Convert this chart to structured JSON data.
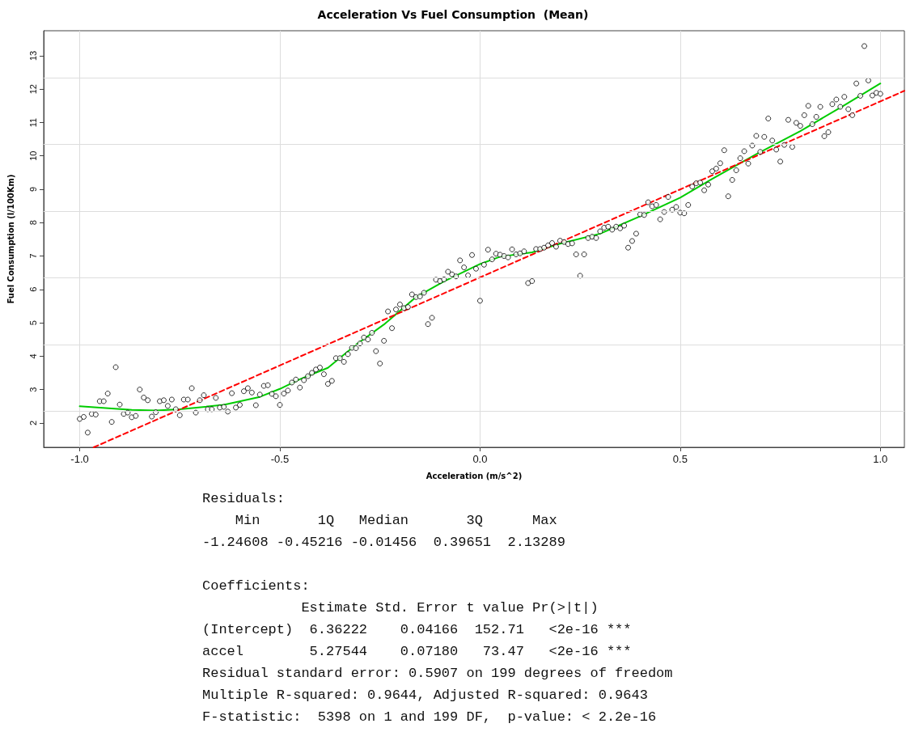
{
  "chart_data": {
    "type": "scatter",
    "title": "Acceleration Vs Fuel Consumption  (Mean)",
    "xlabel": "Acceleration (m/s^2)",
    "ylabel": "Fuel Consumption (l/100Km)",
    "xlim": [
      -1.09,
      1.06
    ],
    "ylim": [
      1.27,
      13.75
    ],
    "xticks": [
      {
        "value": -1,
        "label": "-1.0"
      },
      {
        "value": -0.5,
        "label": "-0.5"
      },
      {
        "value": 0,
        "label": "0.0"
      },
      {
        "value": 0.5,
        "label": "0.5"
      },
      {
        "value": 1,
        "label": "1.0"
      }
    ],
    "yticks": [
      2,
      3,
      4,
      5,
      6,
      7,
      8,
      9,
      10,
      11,
      12,
      13,
      {
        "value": 2.35,
        "label": null
      },
      {
        "value": 4.35,
        "label": null
      },
      {
        "value": 6.35,
        "label": null
      },
      {
        "value": 8.35,
        "label": null
      },
      {
        "value": 10.35,
        "label": null
      },
      {
        "value": 12.35,
        "label": null
      }
    ],
    "grid": true,
    "marker": "circle",
    "series": [
      {
        "type": "scatter",
        "color": "#000000",
        "x": [
          -1.0,
          -0.99,
          -0.98,
          -0.97,
          -0.96,
          -0.95,
          -0.94,
          -0.93,
          -0.92,
          -0.91,
          -0.9,
          -0.89,
          -0.88,
          -0.87,
          -0.86,
          -0.85,
          -0.84,
          -0.83,
          -0.82,
          -0.81,
          -0.8,
          -0.79,
          -0.78,
          -0.77,
          -0.76,
          -0.75,
          -0.74,
          -0.73,
          -0.72,
          -0.71,
          -0.7,
          -0.69,
          -0.68,
          -0.67,
          -0.66,
          -0.65,
          -0.64,
          -0.63,
          -0.62,
          -0.61,
          -0.6,
          -0.59,
          -0.58,
          -0.57,
          -0.56,
          -0.55,
          -0.54,
          -0.53,
          -0.52,
          -0.51,
          -0.5,
          -0.49,
          -0.48,
          -0.47,
          -0.46,
          -0.45,
          -0.44,
          -0.43,
          -0.42,
          -0.41,
          -0.4,
          -0.39,
          -0.38,
          -0.37,
          -0.36,
          -0.35,
          -0.34,
          -0.33,
          -0.32,
          -0.31,
          -0.3,
          -0.29,
          -0.28,
          -0.27,
          -0.26,
          -0.25,
          -0.24,
          -0.23,
          -0.22,
          -0.21,
          -0.2,
          -0.19,
          -0.18,
          -0.17,
          -0.16,
          -0.15,
          -0.14,
          -0.13,
          -0.12,
          -0.11,
          -0.1,
          -0.09,
          -0.08,
          -0.07,
          -0.06,
          -0.05,
          -0.04,
          -0.03,
          -0.02,
          -0.01,
          0.0,
          0.01,
          0.02,
          0.03,
          0.04,
          0.05,
          0.06,
          0.07,
          0.08,
          0.09,
          0.1,
          0.11,
          0.12,
          0.13,
          0.14,
          0.15,
          0.16,
          0.17,
          0.18,
          0.19,
          0.2,
          0.21,
          0.22,
          0.23,
          0.24,
          0.25,
          0.26,
          0.27,
          0.28,
          0.29,
          0.3,
          0.31,
          0.32,
          0.33,
          0.34,
          0.35,
          0.36,
          0.37,
          0.38,
          0.39,
          0.4,
          0.41,
          0.42,
          0.43,
          0.44,
          0.45,
          0.46,
          0.47,
          0.48,
          0.49,
          0.5,
          0.51,
          0.52,
          0.53,
          0.54,
          0.55,
          0.56,
          0.57,
          0.58,
          0.59,
          0.6,
          0.61,
          0.62,
          0.63,
          0.64,
          0.65,
          0.66,
          0.67,
          0.68,
          0.69,
          0.7,
          0.71,
          0.72,
          0.73,
          0.74,
          0.75,
          0.76,
          0.77,
          0.78,
          0.79,
          0.8,
          0.81,
          0.82,
          0.83,
          0.84,
          0.85,
          0.86,
          0.87,
          0.88,
          0.89,
          0.9,
          0.91,
          0.92,
          0.93,
          0.94,
          0.95,
          0.96,
          0.97,
          0.98,
          0.99,
          1.0
        ],
        "values": [
          2.12,
          2.18,
          1.71,
          2.27,
          2.25,
          2.65,
          2.65,
          2.88,
          2.03,
          3.67,
          2.55,
          2.27,
          2.31,
          2.17,
          2.21,
          3.0,
          2.76,
          2.68,
          2.19,
          2.32,
          2.65,
          2.68,
          2.51,
          2.7,
          2.41,
          2.23,
          2.7,
          2.7,
          3.04,
          2.31,
          2.68,
          2.83,
          2.41,
          2.41,
          2.75,
          2.46,
          2.48,
          2.34,
          2.89,
          2.46,
          2.54,
          2.95,
          3.04,
          2.91,
          2.53,
          2.85,
          3.11,
          3.13,
          2.87,
          2.8,
          2.54,
          2.88,
          2.97,
          3.21,
          3.3,
          3.06,
          3.28,
          3.4,
          3.5,
          3.6,
          3.66,
          3.46,
          3.17,
          3.26,
          3.94,
          3.94,
          3.83,
          4.06,
          4.25,
          4.24,
          4.38,
          4.56,
          4.5,
          4.7,
          4.15,
          3.78,
          4.46,
          5.34,
          4.84,
          5.4,
          5.55,
          5.44,
          5.47,
          5.85,
          5.77,
          5.79,
          5.9,
          4.96,
          5.15,
          6.29,
          6.25,
          6.3,
          6.53,
          6.45,
          6.39,
          6.87,
          6.66,
          6.42,
          7.03,
          6.62,
          5.66,
          6.74,
          7.19,
          6.9,
          7.07,
          7.04,
          7.0,
          6.96,
          7.2,
          7.05,
          7.08,
          7.14,
          6.19,
          6.25,
          7.21,
          7.21,
          7.25,
          7.32,
          7.39,
          7.28,
          7.46,
          7.42,
          7.36,
          7.38,
          7.05,
          6.41,
          7.05,
          7.54,
          7.58,
          7.54,
          7.74,
          7.85,
          7.88,
          7.79,
          7.88,
          7.83,
          7.91,
          7.25,
          7.45,
          7.67,
          8.25,
          8.23,
          8.61,
          8.49,
          8.53,
          8.1,
          8.32,
          8.77,
          8.39,
          8.47,
          8.3,
          8.28,
          8.53,
          9.08,
          9.18,
          9.2,
          8.97,
          9.14,
          9.54,
          9.62,
          9.78,
          10.17,
          8.79,
          9.28,
          9.57,
          9.93,
          10.14,
          9.77,
          10.31,
          10.6,
          10.12,
          10.57,
          11.12,
          10.46,
          10.19,
          9.83,
          10.33,
          11.08,
          10.27,
          10.99,
          10.9,
          11.22,
          11.5,
          10.95,
          11.17,
          11.47,
          10.59,
          10.71,
          11.55,
          11.69,
          11.47,
          11.77,
          11.4,
          11.22,
          12.17,
          11.8,
          13.29,
          12.26,
          11.81,
          11.89,
          11.86
        ]
      },
      {
        "type": "line",
        "color": "#00cc00",
        "marker": "none",
        "line_style": "solid",
        "x": [
          -1.0,
          -0.87,
          -0.81,
          -0.75,
          -0.64,
          -0.55,
          -0.5,
          -0.45,
          -0.38,
          -0.31,
          -0.24,
          -0.16,
          -0.09,
          0.0,
          0.05,
          0.13,
          0.2,
          0.3,
          0.4,
          0.5,
          0.58,
          0.69,
          0.8,
          0.91,
          1.0
        ],
        "values": [
          2.5,
          2.39,
          2.37,
          2.41,
          2.54,
          2.78,
          3.02,
          3.31,
          3.65,
          4.34,
          4.95,
          5.77,
          6.24,
          6.76,
          6.98,
          7.11,
          7.37,
          7.67,
          8.19,
          8.75,
          9.31,
          10.05,
          10.74,
          11.52,
          12.17
        ]
      },
      {
        "type": "line",
        "color": "#ff0000",
        "marker": "none",
        "line_style": "dashed",
        "x": [
          -0.965,
          1.06
        ],
        "values": [
          1.27,
          11.95
        ]
      }
    ],
    "annotations": [
      "Residuals:",
      "    Min       1Q   Median       3Q      Max",
      "-1.24608 -0.45216 -0.01456  0.39651  2.13289",
      "Coefficients:",
      "            Estimate Std. Error t value Pr(>|t|)",
      "(Intercept)  6.36222    0.04166  152.71   <2e-16 ***",
      "accel        5.27544    0.07180   73.47   <2e-16 ***",
      "Residual standard error: 0.5907 on 199 degrees of freedom",
      "Multiple R-squared: 0.9644, Adjusted R-squared: 0.9643",
      "F-statistic:  5398 on 1 and 199 DF,  p-value: < 2.2e-16"
    ]
  }
}
